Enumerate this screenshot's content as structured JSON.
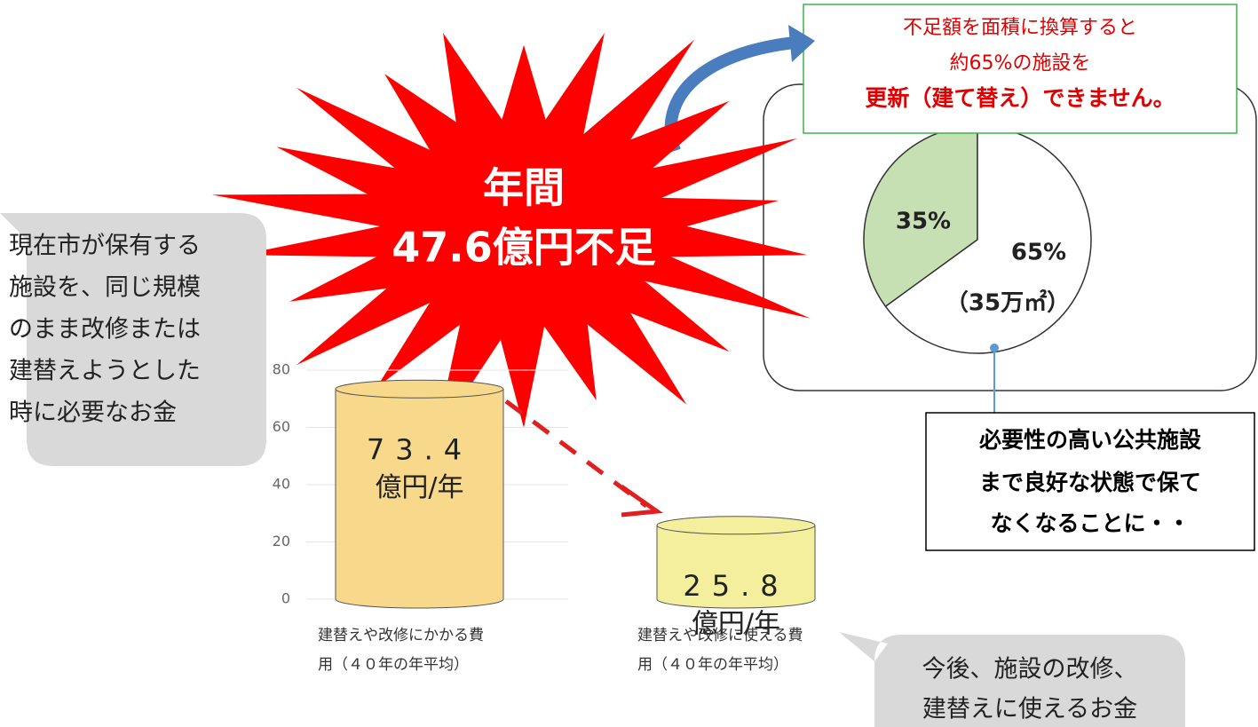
{
  "chart_data": [
    {
      "type": "bar",
      "categories": [
        "建替えや改修にかかる費用（４０年の年平均）",
        "建替えや改修に使える費用（４０年の年平均）"
      ],
      "values": [
        73.4,
        25.8
      ],
      "value_unit": "億円/年",
      "colors": [
        "#f8d98c",
        "#f3ef9c"
      ],
      "ylim": [
        0,
        80
      ],
      "yticks": [
        0,
        20,
        40,
        60,
        80
      ],
      "grid": true
    },
    {
      "type": "pie",
      "values": [
        35,
        65
      ],
      "value_labels": [
        "35%",
        "65%"
      ],
      "colors": [
        "#c6e0b4",
        "#ffffff"
      ],
      "annotation": "（35万㎡）"
    }
  ],
  "starburst": {
    "line1": "年間",
    "line2": "47.6億円不足"
  },
  "callout": {
    "lines": [
      "不足額を面積に換算すると",
      "約65%の施設を",
      "更新（建て替え）できません。"
    ]
  },
  "left_bubble": {
    "lines": [
      "現在市が保有する",
      "施設を、同じ規模",
      "のまま改修または",
      "建替えようとした",
      "時に必要なお金"
    ]
  },
  "right_bubble": {
    "lines": [
      "今後、施設の改修、",
      "建替えに使えるお金"
    ]
  },
  "note_box": {
    "lines": [
      "必要性の高い公共施設",
      "まで良好な状態で保て",
      "なくなることに・・"
    ]
  }
}
